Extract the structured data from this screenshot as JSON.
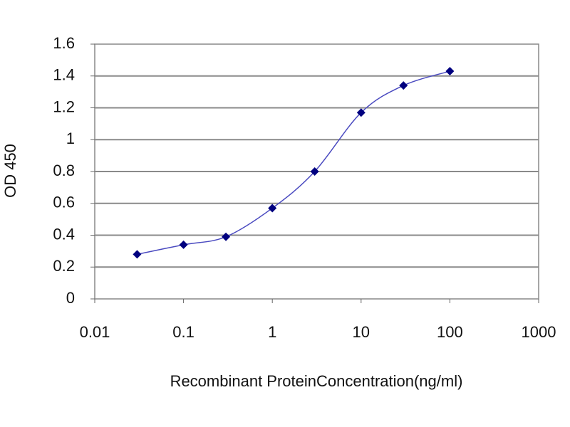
{
  "chart_data": {
    "type": "line",
    "x_label": "Recombinant ProteinConcentration(ng/ml)",
    "y_label": "OD 450",
    "x": [
      0.03,
      0.1,
      0.3,
      1,
      3,
      10,
      30,
      100
    ],
    "series": [
      {
        "color": "#00007f",
        "values": [
          0.28,
          0.34,
          0.39,
          0.57,
          0.8,
          1.17,
          1.34,
          1.43
        ]
      }
    ],
    "xscale": "log",
    "xlim": [
      0.01,
      1000
    ],
    "xticks": [
      0.01,
      0.1,
      1,
      10,
      100,
      1000
    ],
    "ylim": [
      0,
      1.6
    ],
    "yticks": [
      0,
      0.2,
      0.4,
      0.6,
      0.8,
      1,
      1.2,
      1.4,
      1.6
    ],
    "grid": true
  }
}
